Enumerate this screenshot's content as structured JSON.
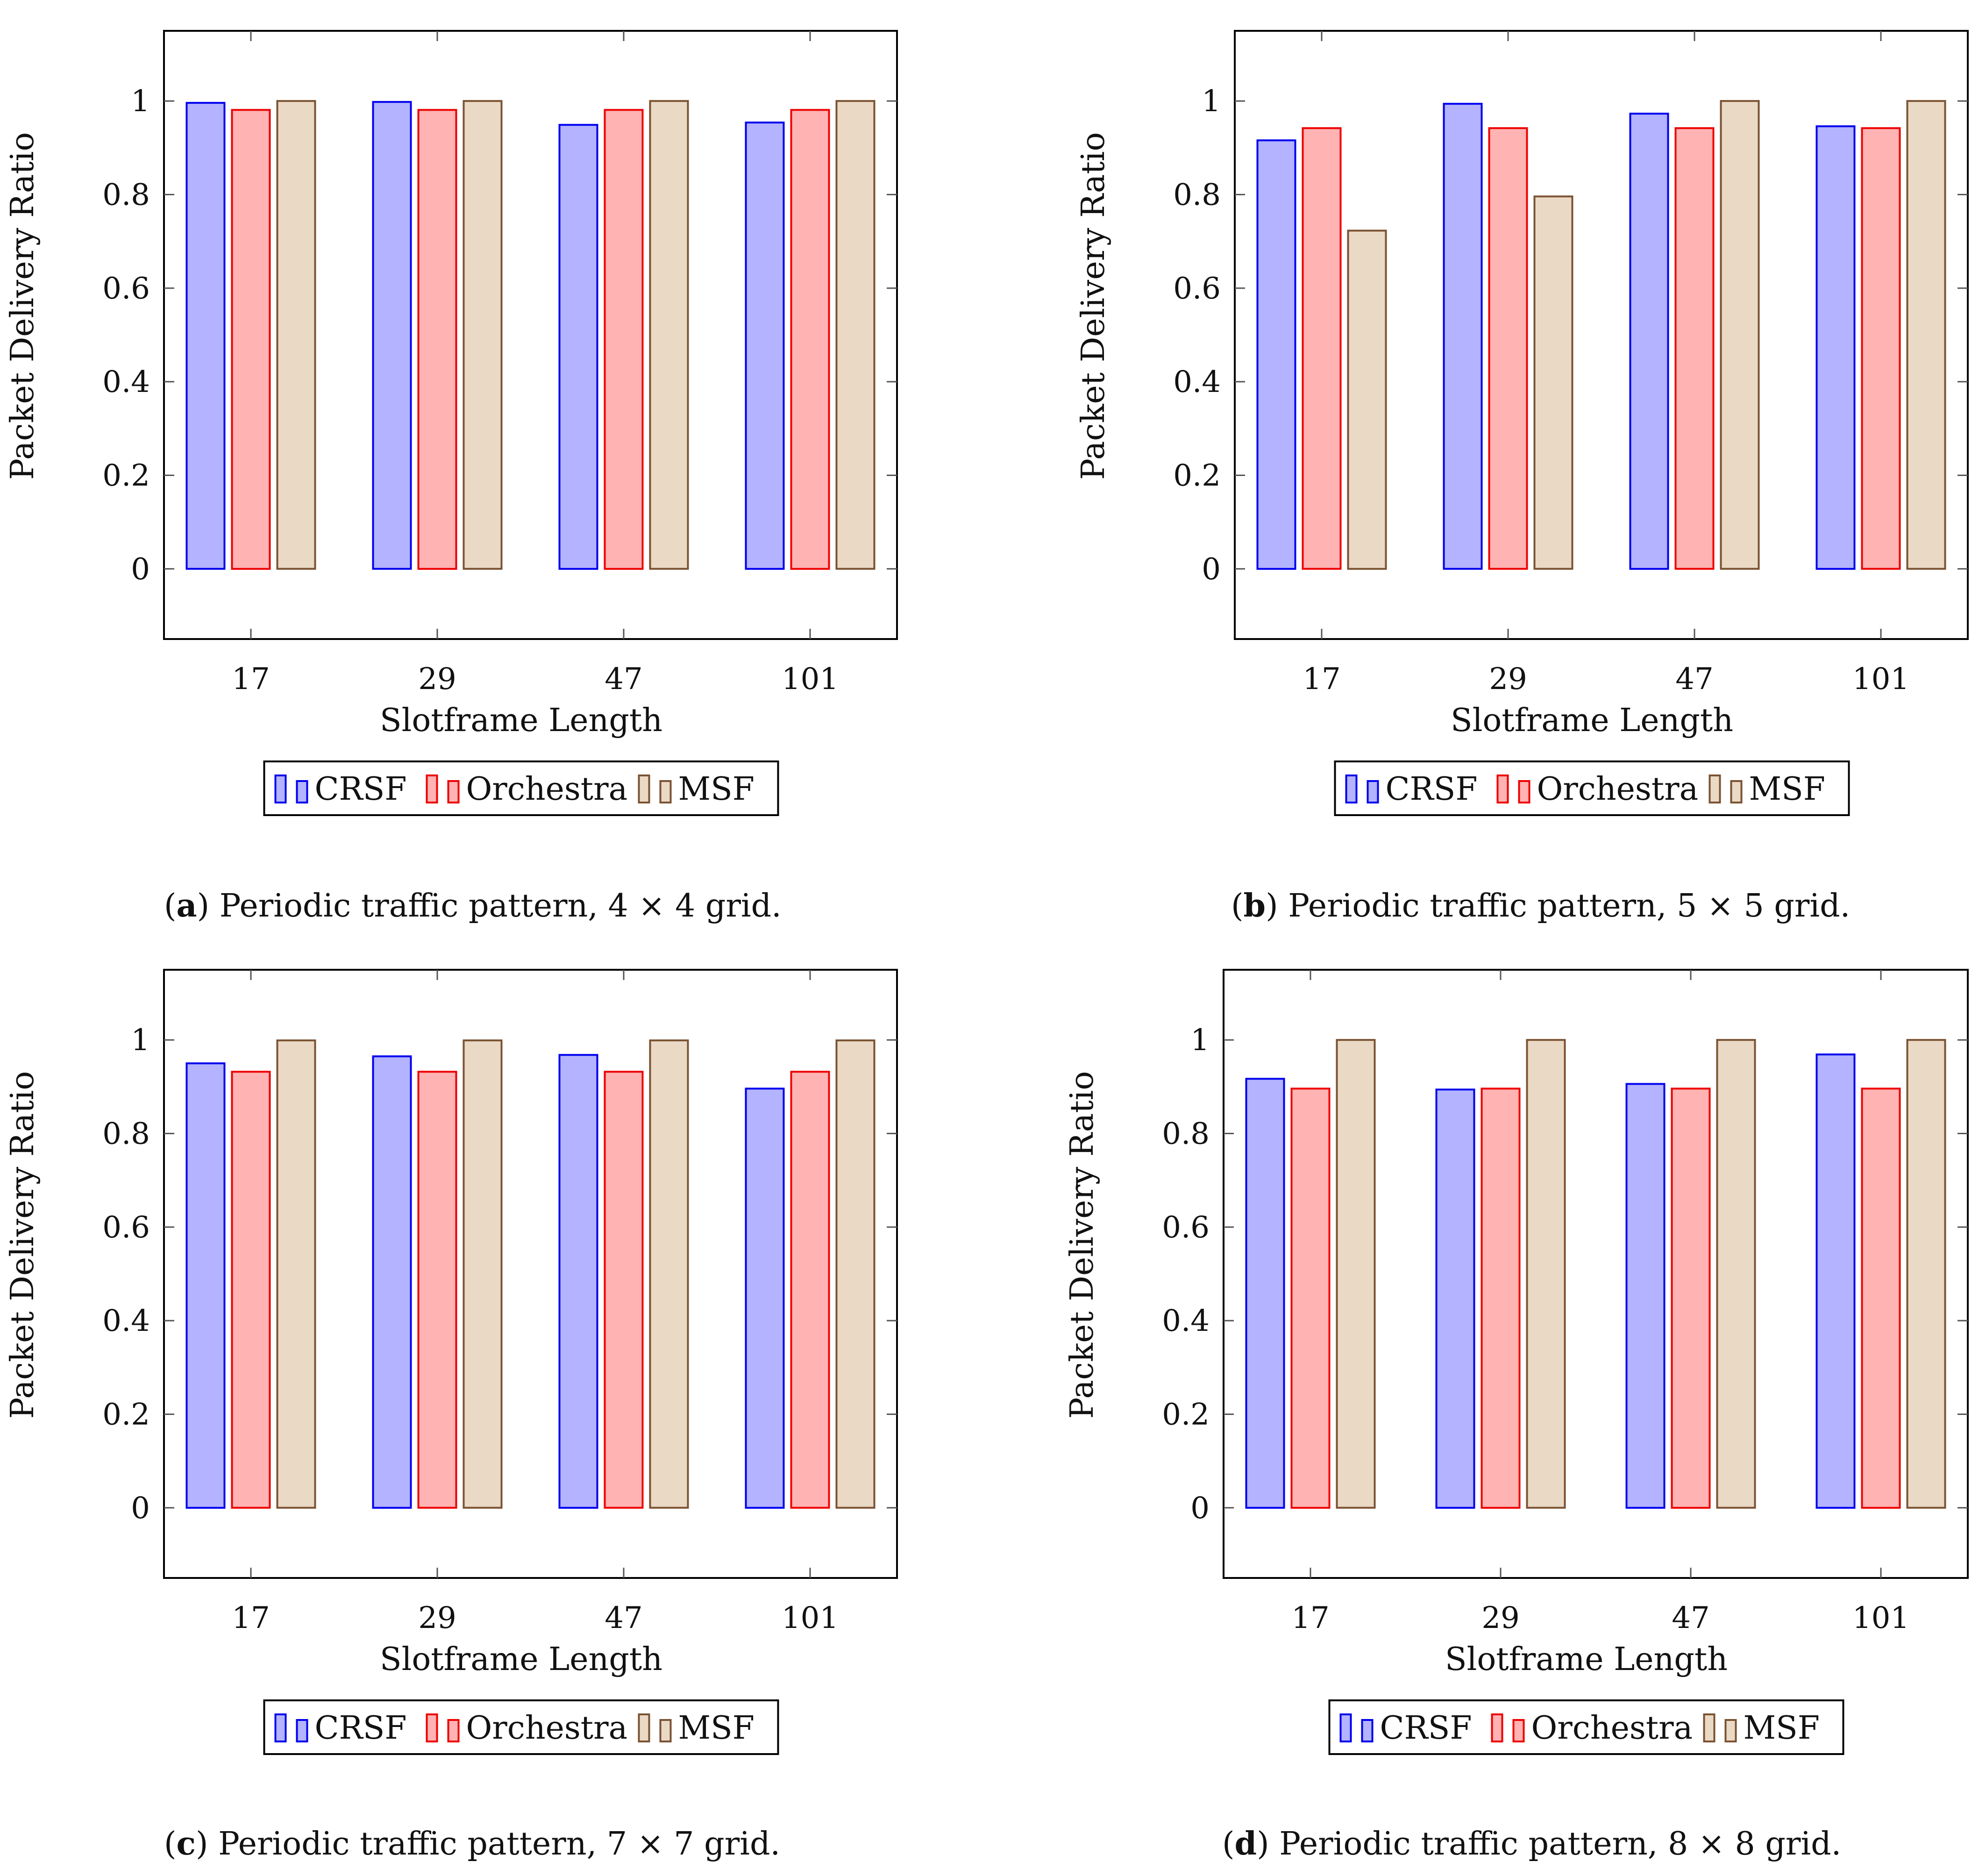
{
  "figure": {
    "legend_order": [
      "CRSF",
      "Orchestra",
      "MSF"
    ],
    "series_colors": {
      "CRSF": {
        "fill": "#b3b3ff",
        "stroke": "#0000ee"
      },
      "Orchestra": {
        "fill": "#ffb3b3",
        "stroke": "#ee0000"
      },
      "MSF": {
        "fill": "#ead9c5",
        "stroke": "#7a5232"
      }
    }
  },
  "chart_data": [
    {
      "id": "a",
      "type": "bar",
      "caption_letter": "a",
      "caption_text": "Periodic traffic pattern, 4 × 4 grid.",
      "xlabel": "Slotframe Length",
      "ylabel": "Packet Delivery Ratio",
      "ylim": [
        -0.15,
        1.15
      ],
      "yticks": [
        0,
        0.2,
        0.4,
        0.6,
        0.8,
        1
      ],
      "ytick_labels": [
        "0",
        "0.2",
        "0.4",
        "0.6",
        "0.8",
        "1"
      ],
      "grid": false,
      "legend_position": "below",
      "categories": [
        "17",
        "29",
        "47",
        "101"
      ],
      "series": [
        {
          "name": "CRSF",
          "values": [
            0.996,
            0.998,
            0.949,
            0.954
          ]
        },
        {
          "name": "Orchestra",
          "values": [
            0.981,
            0.981,
            0.981,
            0.981
          ]
        },
        {
          "name": "MSF",
          "values": [
            1.0,
            1.0,
            1.0,
            1.0
          ]
        }
      ]
    },
    {
      "id": "b",
      "type": "bar",
      "caption_letter": "b",
      "caption_text": "Periodic traffic pattern, 5 × 5 grid.",
      "xlabel": "Slotframe Length",
      "ylabel": "Packet Delivery Ratio",
      "ylim": [
        -0.15,
        1.15
      ],
      "yticks": [
        0,
        0.2,
        0.4,
        0.6,
        0.8,
        1
      ],
      "ytick_labels": [
        "0",
        "0.2",
        "0.4",
        "0.6",
        "0.8",
        "1"
      ],
      "grid": false,
      "legend_position": "below",
      "categories": [
        "17",
        "29",
        "47",
        "101"
      ],
      "series": [
        {
          "name": "CRSF",
          "values": [
            0.916,
            0.994,
            0.973,
            0.946
          ]
        },
        {
          "name": "Orchestra",
          "values": [
            0.942,
            0.942,
            0.942,
            0.942
          ]
        },
        {
          "name": "MSF",
          "values": [
            0.723,
            0.796,
            1.0,
            1.0
          ]
        }
      ]
    },
    {
      "id": "c",
      "type": "bar",
      "caption_letter": "c",
      "caption_text": "Periodic traffic pattern, 7 × 7 grid.",
      "xlabel": "Slotframe Length",
      "ylabel": "Packet Delivery Ratio",
      "ylim": [
        -0.15,
        1.15
      ],
      "yticks": [
        0,
        0.2,
        0.4,
        0.6,
        0.8,
        1
      ],
      "ytick_labels": [
        "0",
        "0.2",
        "0.4",
        "0.6",
        "0.8",
        "1"
      ],
      "grid": false,
      "legend_position": "below",
      "categories": [
        "17",
        "29",
        "47",
        "101"
      ],
      "series": [
        {
          "name": "CRSF",
          "values": [
            0.95,
            0.965,
            0.968,
            0.896
          ]
        },
        {
          "name": "Orchestra",
          "values": [
            0.932,
            0.932,
            0.932,
            0.932
          ]
        },
        {
          "name": "MSF",
          "values": [
            0.999,
            0.999,
            0.999,
            0.999
          ]
        }
      ]
    },
    {
      "id": "d",
      "type": "bar",
      "caption_letter": "d",
      "caption_text": "Periodic traffic pattern, 8 × 8 grid.",
      "xlabel": "Slotframe Length",
      "ylabel": "Packet Delivery Ratio",
      "ylim": [
        -0.15,
        1.15
      ],
      "yticks": [
        0,
        0.2,
        0.4,
        0.6,
        0.8,
        1
      ],
      "ytick_labels": [
        "0",
        "0.2",
        "0.4",
        "0.6",
        "0.8",
        "1"
      ],
      "grid": false,
      "legend_position": "below",
      "categories": [
        "17",
        "29",
        "47",
        "101"
      ],
      "series": [
        {
          "name": "CRSF",
          "values": [
            0.917,
            0.894,
            0.906,
            0.969
          ]
        },
        {
          "name": "Orchestra",
          "values": [
            0.896,
            0.896,
            0.896,
            0.896
          ]
        },
        {
          "name": "MSF",
          "values": [
            1.0,
            1.0,
            1.0,
            1.0
          ]
        }
      ]
    }
  ]
}
